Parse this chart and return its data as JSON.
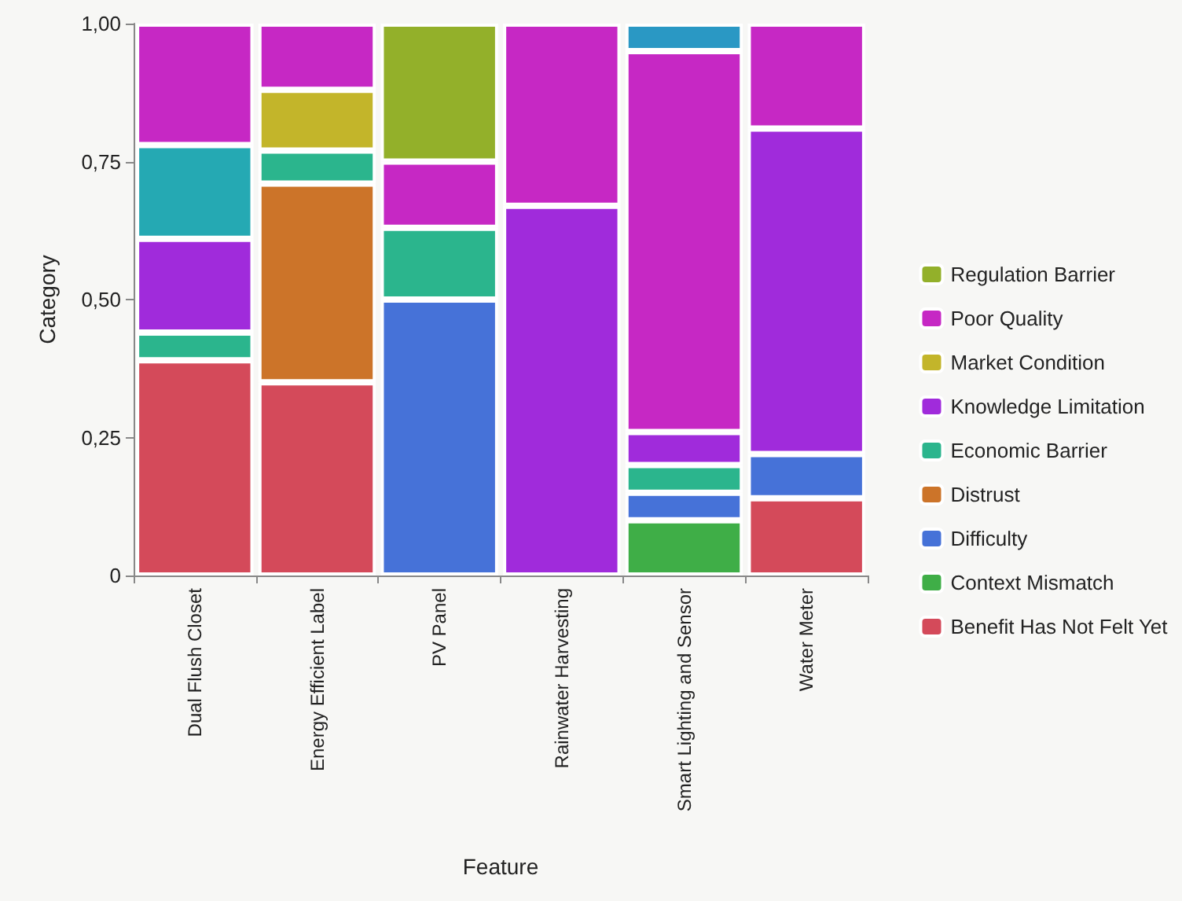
{
  "chart_data": {
    "type": "bar",
    "stacked": true,
    "xlabel": "Feature",
    "ylabel": "Category",
    "categories": [
      "Dual Flush Closet",
      "Energy Efficient Label",
      "PV Panel",
      "Rainwater Harvesting",
      "Smart Lighting and Sensor",
      "Water Meter"
    ],
    "ylim": [
      0,
      1
    ],
    "yticks": [
      {
        "value": 0,
        "label": "0"
      },
      {
        "value": 0.25,
        "label": "0,25"
      },
      {
        "value": 0.5,
        "label": "0,50"
      },
      {
        "value": 0.75,
        "label": "0,75"
      },
      {
        "value": 1,
        "label": "1,00"
      }
    ],
    "legend": "right",
    "grid": false,
    "series": [
      {
        "name": "Benefit Has Not Felt Yet",
        "color": "#d44a5a",
        "values": [
          0.39,
          0.35,
          null,
          null,
          null,
          0.14
        ]
      },
      {
        "name": "Context Mismatch",
        "color": "#3fae47",
        "values": [
          null,
          null,
          null,
          null,
          0.1,
          null
        ]
      },
      {
        "name": "Difficulty",
        "color": "#4672d8",
        "values": [
          null,
          null,
          0.5,
          null,
          0.05,
          0.08
        ]
      },
      {
        "name": "Distrust",
        "color": "#cc7429",
        "values": [
          null,
          0.36,
          null,
          null,
          null,
          null
        ]
      },
      {
        "name": "Economic Barrier",
        "color": "#2bb58d",
        "values": [
          0.05,
          0.06,
          0.13,
          null,
          0.05,
          null
        ]
      },
      {
        "name": "Knowledge Limitation",
        "color": "#a02bdb",
        "values": [
          0.17,
          null,
          null,
          0.67,
          0.06,
          0.59
        ]
      },
      {
        "name": "Market Condition",
        "color": "#c3b52a",
        "values": [
          null,
          0.11,
          null,
          null,
          null,
          null
        ]
      },
      {
        "color": "#25a9b3",
        "values": [
          0.17,
          null,
          null,
          null,
          null,
          null
        ]
      },
      {
        "name": "Poor Quality",
        "color": "#c628c4",
        "values": [
          0.22,
          0.12,
          0.12,
          0.33,
          0.69,
          0.19
        ]
      },
      {
        "name": "Regulation Barrier",
        "color": "#93b02a",
        "values": [
          null,
          null,
          0.25,
          null,
          null,
          null
        ]
      },
      {
        "color": "#2a98c4",
        "values": [
          null,
          null,
          null,
          null,
          0.05,
          null
        ]
      }
    ]
  }
}
